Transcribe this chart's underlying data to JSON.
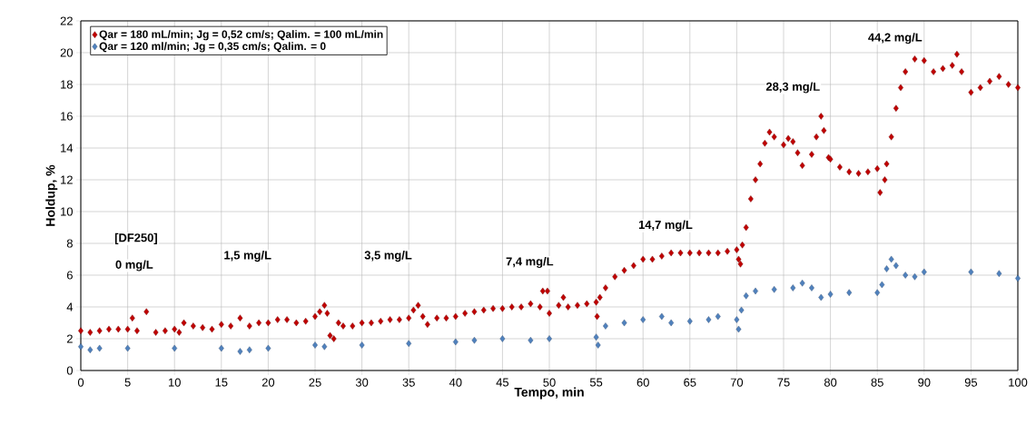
{
  "chart_data": {
    "type": "scatter",
    "xlabel": "Tempo, min",
    "ylabel": "Holdup, %",
    "xlim": [
      0,
      100
    ],
    "ylim": [
      0,
      22
    ],
    "xticks": [
      0,
      5,
      10,
      15,
      20,
      25,
      30,
      35,
      40,
      45,
      50,
      55,
      60,
      65,
      70,
      75,
      80,
      85,
      90,
      95,
      100
    ],
    "yticks": [
      0,
      2,
      4,
      6,
      8,
      10,
      12,
      14,
      16,
      18,
      20,
      22
    ],
    "grid": true,
    "legend": "top left",
    "marker": "diamond",
    "series": [
      {
        "name": "Qar = 180 mL/min; Jg = 0,52 cm/s; Qalim. = 100 mL/min",
        "color": "#c00000",
        "x": [
          0,
          1,
          2,
          3,
          4,
          5,
          5.5,
          6,
          7,
          8,
          9,
          10,
          10.5,
          11,
          12,
          13,
          14,
          15,
          16,
          17,
          18,
          19,
          20,
          21,
          22,
          23,
          24,
          25,
          25.5,
          26,
          26.3,
          26.6,
          27,
          27.5,
          28,
          29,
          30,
          31,
          32,
          33,
          34,
          35,
          35.5,
          36,
          36.5,
          37,
          38,
          39,
          40,
          41,
          42,
          43,
          44,
          45,
          46,
          47,
          48,
          49,
          49.3,
          49.8,
          50,
          51,
          51.5,
          52,
          53,
          54,
          55,
          55.1,
          55.4,
          56,
          57,
          58,
          59,
          60,
          61,
          62,
          63,
          64,
          65,
          66,
          67,
          68,
          69,
          70,
          70.2,
          70.4,
          70.6,
          71,
          71.5,
          72,
          72.5,
          73,
          73.5,
          74,
          75,
          75.5,
          76,
          76.5,
          77,
          78,
          78.5,
          79,
          79.3,
          79.8,
          80,
          81,
          82,
          83,
          84,
          85,
          85.3,
          85.8,
          86,
          86.5,
          87,
          87.5,
          88,
          89,
          90,
          91,
          92,
          93,
          93.5,
          94,
          95,
          96,
          97,
          98,
          99,
          100
        ],
        "values": [
          2.5,
          2.4,
          2.5,
          2.6,
          2.6,
          2.6,
          3.3,
          2.5,
          3.7,
          2.4,
          2.5,
          2.6,
          2.4,
          3.0,
          2.8,
          2.7,
          2.6,
          2.9,
          2.8,
          3.3,
          2.8,
          3.0,
          3.0,
          3.2,
          3.2,
          3.0,
          3.1,
          3.4,
          3.7,
          4.1,
          3.6,
          2.2,
          2.0,
          3.0,
          2.8,
          2.8,
          3.0,
          3.0,
          3.1,
          3.2,
          3.2,
          3.3,
          3.8,
          4.1,
          3.4,
          2.9,
          3.3,
          3.3,
          3.4,
          3.6,
          3.7,
          3.8,
          3.9,
          3.9,
          4.0,
          4.0,
          4.2,
          4.0,
          5.0,
          5.0,
          3.6,
          4.1,
          4.6,
          4.0,
          4.1,
          4.2,
          4.3,
          3.4,
          4.6,
          5.2,
          5.9,
          6.3,
          6.6,
          7.0,
          7.0,
          7.2,
          7.4,
          7.4,
          7.4,
          7.4,
          7.4,
          7.4,
          7.5,
          7.6,
          7.0,
          6.7,
          7.9,
          9.0,
          10.8,
          12.0,
          13.0,
          14.3,
          15.0,
          14.7,
          14.2,
          14.6,
          14.4,
          13.7,
          12.9,
          13.6,
          14.7,
          16.0,
          15.1,
          13.4,
          13.3,
          12.8,
          12.5,
          12.4,
          12.5,
          12.7,
          11.2,
          12.0,
          13.0,
          14.7,
          16.5,
          17.8,
          18.8,
          19.6,
          19.5,
          18.8,
          19.0,
          19.2,
          19.9,
          18.8,
          17.5,
          17.8,
          18.2,
          18.5,
          18.0,
          17.8
        ]
      },
      {
        "name": "Qar = 120 ml/min; Jg = 0,35 cm/s; Qalim. = 0",
        "color": "#4f81bd",
        "x": [
          0,
          1,
          2,
          5,
          10,
          15,
          17,
          18,
          20,
          25,
          26,
          30,
          35,
          40,
          42,
          45,
          48,
          50,
          55,
          55.2,
          56,
          58,
          60,
          62,
          63,
          65,
          67,
          68,
          70,
          70.2,
          70.5,
          71,
          72,
          74,
          76,
          77,
          78,
          79,
          80,
          82,
          85,
          85.5,
          86,
          86.5,
          87,
          88,
          89,
          90,
          95,
          98,
          100
        ],
        "values": [
          1.5,
          1.3,
          1.4,
          1.4,
          1.4,
          1.4,
          1.2,
          1.3,
          1.4,
          1.6,
          1.5,
          1.6,
          1.7,
          1.8,
          1.9,
          2.0,
          1.9,
          2.0,
          2.1,
          1.6,
          2.8,
          3.0,
          3.2,
          3.4,
          3.0,
          3.1,
          3.2,
          3.4,
          3.2,
          2.6,
          3.8,
          4.7,
          5.0,
          5.1,
          5.2,
          5.5,
          5.2,
          4.6,
          4.8,
          4.9,
          4.9,
          5.4,
          6.4,
          7.0,
          6.6,
          6.0,
          5.9,
          6.2,
          6.2,
          6.1,
          5.8
        ]
      }
    ],
    "annotations": [
      "[DF250]",
      "0 mg/L",
      "1,5 mg/L",
      "3,5 mg/L",
      "7,4 mg/L",
      "14,7 mg/L",
      "28,3 mg/L",
      "44,2 mg/L"
    ]
  }
}
